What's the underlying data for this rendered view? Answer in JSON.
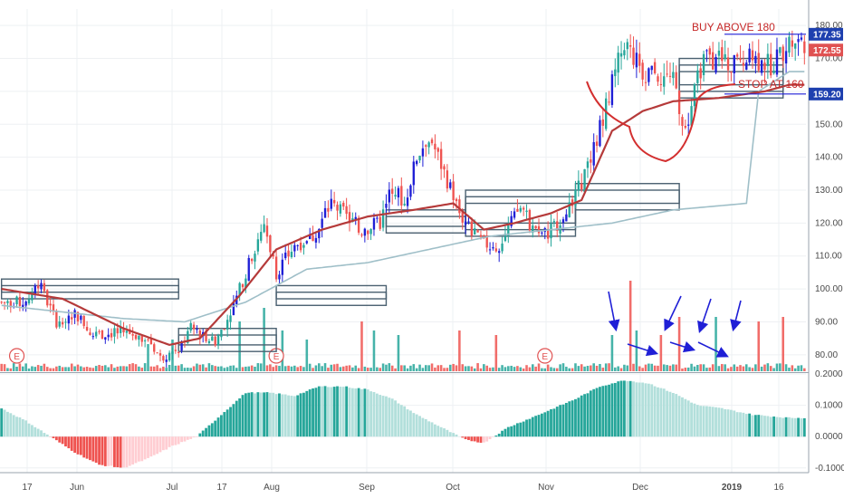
{
  "chart_data": {
    "type": "candlestick",
    "price_axis": {
      "ticks": [
        "180.00",
        "170.00",
        "160.00",
        "150.00",
        "140.00",
        "130.00",
        "120.00",
        "110.00",
        "100.00",
        "90.00",
        "80.00"
      ],
      "range": [
        75,
        185
      ]
    },
    "osc_axis": {
      "ticks": [
        "0.2000",
        "0.1000",
        "0.0000",
        "-0.1000"
      ],
      "range": [
        -0.115,
        0.2
      ]
    },
    "x_ticks": [
      "17",
      "Jun",
      "Jul",
      "17",
      "Aug",
      "Sep",
      "Oct",
      "Nov",
      "Dec",
      "2019",
      "16"
    ],
    "price_tags": [
      {
        "text": "177.35",
        "value": 177.35,
        "color": "#1e40af"
      },
      {
        "text": "172.55",
        "value": 172.55,
        "color": "#e05252"
      },
      {
        "text": "159.20",
        "value": 159.2,
        "color": "#1e40af"
      }
    ],
    "annotations": [
      {
        "text": "BUY ABOVE 180"
      },
      {
        "text": "STOP AT 160"
      }
    ],
    "earnings_marker": "E",
    "earnings_bars": [
      5,
      90,
      178
    ],
    "colors": {
      "up": "#26a69a",
      "down": "#ef5350",
      "blue": "#1f1fd6",
      "ma": "#b53a3a",
      "slow": "#9fbfc8",
      "box": "#4a6070"
    },
    "anchors": [
      [
        0,
        96
      ],
      [
        8,
        96
      ],
      [
        12,
        102
      ],
      [
        18,
        90
      ],
      [
        24,
        93
      ],
      [
        30,
        86
      ],
      [
        40,
        87
      ],
      [
        48,
        85
      ],
      [
        52,
        79
      ],
      [
        58,
        82
      ],
      [
        62,
        88
      ],
      [
        70,
        84
      ],
      [
        76,
        95
      ],
      [
        82,
        110
      ],
      [
        86,
        120
      ],
      [
        90,
        105
      ],
      [
        96,
        113
      ],
      [
        102,
        116
      ],
      [
        108,
        126
      ],
      [
        114,
        121
      ],
      [
        118,
        118
      ],
      [
        124,
        120
      ],
      [
        128,
        131
      ],
      [
        132,
        126
      ],
      [
        136,
        140
      ],
      [
        140,
        147
      ],
      [
        146,
        133
      ],
      [
        150,
        123
      ],
      [
        156,
        115
      ],
      [
        162,
        112
      ],
      [
        170,
        125
      ],
      [
        176,
        115
      ],
      [
        182,
        120
      ],
      [
        188,
        128
      ],
      [
        194,
        142
      ],
      [
        198,
        156
      ],
      [
        204,
        175
      ],
      [
        210,
        166
      ],
      [
        216,
        165
      ],
      [
        220,
        163
      ],
      [
        224,
        148
      ],
      [
        230,
        171
      ],
      [
        238,
        168
      ],
      [
        246,
        170
      ],
      [
        252,
        168
      ],
      [
        258,
        175
      ]
    ],
    "osc_anchors": [
      [
        0,
        0.09
      ],
      [
        8,
        0.05
      ],
      [
        16,
        0.0
      ],
      [
        24,
        -0.05
      ],
      [
        32,
        -0.09
      ],
      [
        40,
        -0.1
      ],
      [
        48,
        -0.07
      ],
      [
        56,
        -0.03
      ],
      [
        64,
        0.0
      ],
      [
        72,
        0.07
      ],
      [
        80,
        0.14
      ],
      [
        88,
        0.14
      ],
      [
        96,
        0.13
      ],
      [
        104,
        0.16
      ],
      [
        112,
        0.16
      ],
      [
        120,
        0.15
      ],
      [
        128,
        0.12
      ],
      [
        136,
        0.07
      ],
      [
        144,
        0.03
      ],
      [
        152,
        -0.01
      ],
      [
        158,
        -0.02
      ],
      [
        166,
        0.03
      ],
      [
        176,
        0.07
      ],
      [
        188,
        0.12
      ],
      [
        196,
        0.16
      ],
      [
        204,
        0.18
      ],
      [
        212,
        0.17
      ],
      [
        220,
        0.14
      ],
      [
        228,
        0.1
      ],
      [
        236,
        0.09
      ],
      [
        246,
        0.07
      ],
      [
        258,
        0.06
      ]
    ],
    "ma_anchors": [
      [
        0,
        100
      ],
      [
        20,
        97
      ],
      [
        40,
        88
      ],
      [
        55,
        83
      ],
      [
        65,
        85
      ],
      [
        78,
        98
      ],
      [
        90,
        112
      ],
      [
        105,
        118
      ],
      [
        120,
        122
      ],
      [
        135,
        124
      ],
      [
        148,
        126
      ],
      [
        158,
        118
      ],
      [
        168,
        120
      ],
      [
        180,
        123
      ],
      [
        190,
        127
      ],
      [
        200,
        148
      ],
      [
        210,
        154
      ],
      [
        220,
        157
      ],
      [
        235,
        158
      ],
      [
        250,
        160
      ],
      [
        258,
        162
      ]
    ],
    "slow_anchors": [
      [
        0,
        95
      ],
      [
        40,
        91
      ],
      [
        60,
        90
      ],
      [
        80,
        96
      ],
      [
        100,
        106
      ],
      [
        120,
        108
      ],
      [
        140,
        112
      ],
      [
        160,
        116
      ],
      [
        180,
        118
      ],
      [
        200,
        120
      ],
      [
        220,
        124
      ],
      [
        244,
        126
      ],
      [
        248,
        160
      ],
      [
        258,
        166
      ]
    ],
    "volume_spikes": [
      [
        48,
        0.3
      ],
      [
        56,
        0.35
      ],
      [
        78,
        0.55
      ],
      [
        86,
        0.7
      ],
      [
        92,
        0.45
      ],
      [
        100,
        0.35
      ],
      [
        118,
        0.55
      ],
      [
        122,
        0.45
      ],
      [
        130,
        0.4
      ],
      [
        150,
        0.45
      ],
      [
        162,
        0.4
      ],
      [
        200,
        0.4
      ],
      [
        206,
        1.0
      ],
      [
        208,
        0.45
      ],
      [
        216,
        0.4
      ],
      [
        222,
        0.6
      ],
      [
        234,
        0.6
      ],
      [
        248,
        0.55
      ],
      [
        256,
        0.6
      ]
    ]
  }
}
